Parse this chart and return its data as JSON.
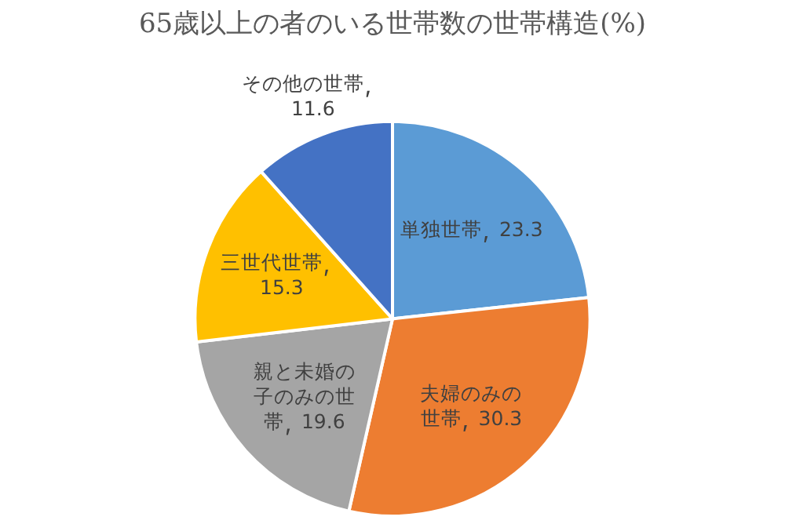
{
  "chart_data": {
    "type": "pie",
    "title": "65歳以上の者のいる世帯数の世帯構造(%)",
    "categories": [
      "単独世帯",
      "夫婦のみの世帯",
      "親と未婚の子のみの世帯",
      "三世代世帯",
      "その他の世帯"
    ],
    "values": [
      23.3,
      30.3,
      19.6,
      15.3,
      11.6
    ],
    "colors": [
      "#5b9bd5",
      "#ed7d31",
      "#a5a5a5",
      "#ffc000",
      "#4472c4"
    ],
    "data_labels": true,
    "legend": false
  }
}
